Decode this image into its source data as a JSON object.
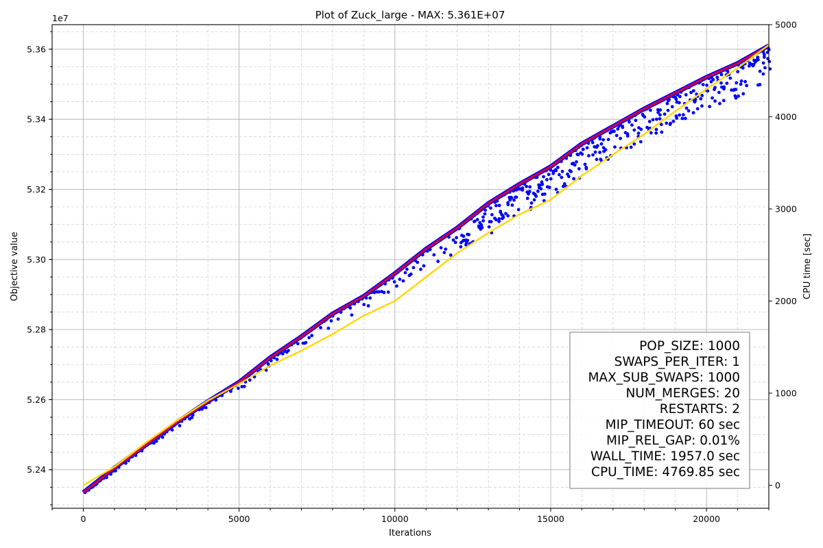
{
  "chart_data": {
    "type": "line",
    "title": "Plot of Zuck_large - MAX: 5.361E+07",
    "xlabel": "Iterations",
    "ylabel": "Objective value",
    "y2label": "CPU time [sec]",
    "y_offset_label": "1e7",
    "xlim": [
      -1000,
      22000
    ],
    "ylim": [
      52.29,
      53.67
    ],
    "y2lim": [
      -250,
      5000
    ],
    "x_ticks": [
      0,
      5000,
      10000,
      15000,
      20000
    ],
    "y_ticks": [
      52.4,
      52.6,
      52.8,
      53.0,
      53.2,
      53.4,
      53.6
    ],
    "y_tick_labels": [
      "5.24",
      "5.26",
      "5.28",
      "5.30",
      "5.32",
      "5.34",
      "5.36"
    ],
    "y2_ticks": [
      0,
      1000,
      2000,
      3000,
      4000,
      5000
    ],
    "grid": true,
    "colors": {
      "best": "#d4003a",
      "population": "#0000ff",
      "cpu_time": "#ffd700",
      "grid": "#b0b0b0"
    },
    "series": [
      {
        "name": "best",
        "axis": "left",
        "points": [
          [
            0,
            52.335
          ],
          [
            1000,
            52.405
          ],
          [
            2000,
            52.47
          ],
          [
            3000,
            52.535
          ],
          [
            4000,
            52.595
          ],
          [
            5000,
            52.65
          ],
          [
            6000,
            52.72
          ],
          [
            7000,
            52.78
          ],
          [
            8000,
            52.845
          ],
          [
            9000,
            52.895
          ],
          [
            10000,
            52.96
          ],
          [
            11000,
            53.03
          ],
          [
            12000,
            53.09
          ],
          [
            13000,
            53.16
          ],
          [
            14000,
            53.215
          ],
          [
            15000,
            53.265
          ],
          [
            16000,
            53.33
          ],
          [
            17000,
            53.38
          ],
          [
            18000,
            53.43
          ],
          [
            19000,
            53.475
          ],
          [
            20000,
            53.52
          ],
          [
            21000,
            53.56
          ],
          [
            22000,
            53.61
          ]
        ]
      },
      {
        "name": "population",
        "axis": "left",
        "spread": [
          [
            0,
            0.005
          ],
          [
            5000,
            0.02
          ],
          [
            10000,
            0.04
          ],
          [
            13000,
            0.09
          ],
          [
            15000,
            0.09
          ],
          [
            22000,
            0.1
          ]
        ]
      },
      {
        "name": "cpu_time",
        "axis": "right",
        "points": [
          [
            0,
            0
          ],
          [
            1000,
            200
          ],
          [
            2000,
            460
          ],
          [
            3000,
            700
          ],
          [
            4000,
            920
          ],
          [
            5000,
            1100
          ],
          [
            6000,
            1300
          ],
          [
            7000,
            1460
          ],
          [
            8000,
            1640
          ],
          [
            9000,
            1840
          ],
          [
            10000,
            2000
          ],
          [
            11000,
            2260
          ],
          [
            12000,
            2520
          ],
          [
            13000,
            2740
          ],
          [
            14000,
            2940
          ],
          [
            15000,
            3100
          ],
          [
            16000,
            3360
          ],
          [
            17000,
            3590
          ],
          [
            18000,
            3810
          ],
          [
            19000,
            4060
          ],
          [
            20000,
            4300
          ],
          [
            21000,
            4530
          ],
          [
            22000,
            4780
          ]
        ]
      }
    ],
    "legend": {
      "placement": "lower-right",
      "lines": [
        "POP_SIZE: 1000",
        "SWAPS_PER_ITER: 1",
        "MAX_SUB_SWAPS: 1000",
        "NUM_MERGES: 20",
        "RESTARTS: 2",
        "MIP_TIMEOUT: 60 sec",
        "MIP_REL_GAP: 0.01%",
        "WALL_TIME: 1957.0 sec",
        "CPU_TIME: 4769.85 sec"
      ]
    }
  }
}
